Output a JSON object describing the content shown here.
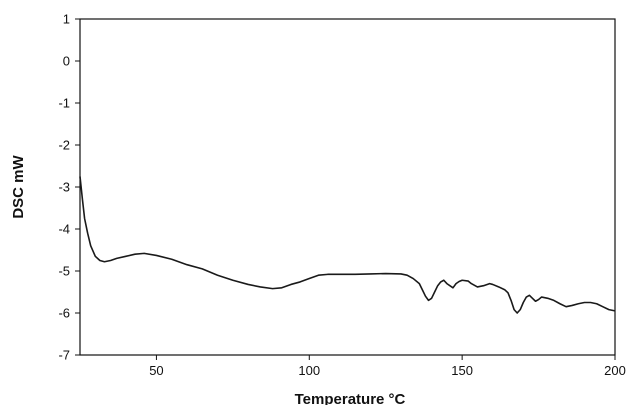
{
  "chart_data": {
    "type": "line",
    "title": "",
    "xlabel": "Temperature °C",
    "ylabel": "DSC mW",
    "xlim": [
      25,
      200
    ],
    "ylim": [
      -7,
      1
    ],
    "x_ticks": [
      50,
      100,
      150,
      200
    ],
    "y_ticks": [
      1,
      0,
      -1,
      -2,
      -3,
      -4,
      -5,
      -6,
      -7
    ],
    "grid": false,
    "legend": "none",
    "line_color": "#1a1a1a",
    "series": [
      {
        "x": [
          25,
          25.8,
          26.5,
          27.5,
          28.5,
          30,
          31.5,
          33,
          35,
          37,
          40,
          43,
          46,
          50,
          55,
          60,
          65,
          70,
          75,
          80,
          84,
          88,
          91,
          94,
          97,
          100,
          103,
          106,
          110,
          115,
          120,
          125,
          130,
          132,
          134,
          136,
          137,
          138,
          139,
          140,
          141,
          142,
          143,
          144,
          145,
          147,
          148,
          149,
          150,
          152,
          153,
          155,
          157,
          159,
          160,
          162,
          164,
          165,
          166,
          167,
          168,
          169,
          170,
          171,
          172,
          173,
          174,
          175,
          176,
          178,
          180,
          182,
          184,
          186,
          188,
          190,
          192,
          194,
          196,
          198,
          200
        ],
        "y": [
          -2.75,
          -3.3,
          -3.75,
          -4.1,
          -4.4,
          -4.65,
          -4.75,
          -4.78,
          -4.75,
          -4.7,
          -4.65,
          -4.6,
          -4.58,
          -4.63,
          -4.72,
          -4.85,
          -4.95,
          -5.1,
          -5.22,
          -5.32,
          -5.38,
          -5.42,
          -5.4,
          -5.32,
          -5.26,
          -5.18,
          -5.1,
          -5.08,
          -5.08,
          -5.08,
          -5.07,
          -5.06,
          -5.07,
          -5.1,
          -5.18,
          -5.3,
          -5.45,
          -5.6,
          -5.7,
          -5.65,
          -5.5,
          -5.35,
          -5.26,
          -5.22,
          -5.3,
          -5.4,
          -5.3,
          -5.25,
          -5.22,
          -5.24,
          -5.3,
          -5.38,
          -5.35,
          -5.3,
          -5.32,
          -5.38,
          -5.45,
          -5.52,
          -5.7,
          -5.92,
          -6.0,
          -5.92,
          -5.75,
          -5.62,
          -5.58,
          -5.65,
          -5.72,
          -5.68,
          -5.62,
          -5.65,
          -5.7,
          -5.78,
          -5.85,
          -5.82,
          -5.78,
          -5.75,
          -5.75,
          -5.78,
          -5.85,
          -5.92,
          -5.95
        ]
      }
    ]
  }
}
